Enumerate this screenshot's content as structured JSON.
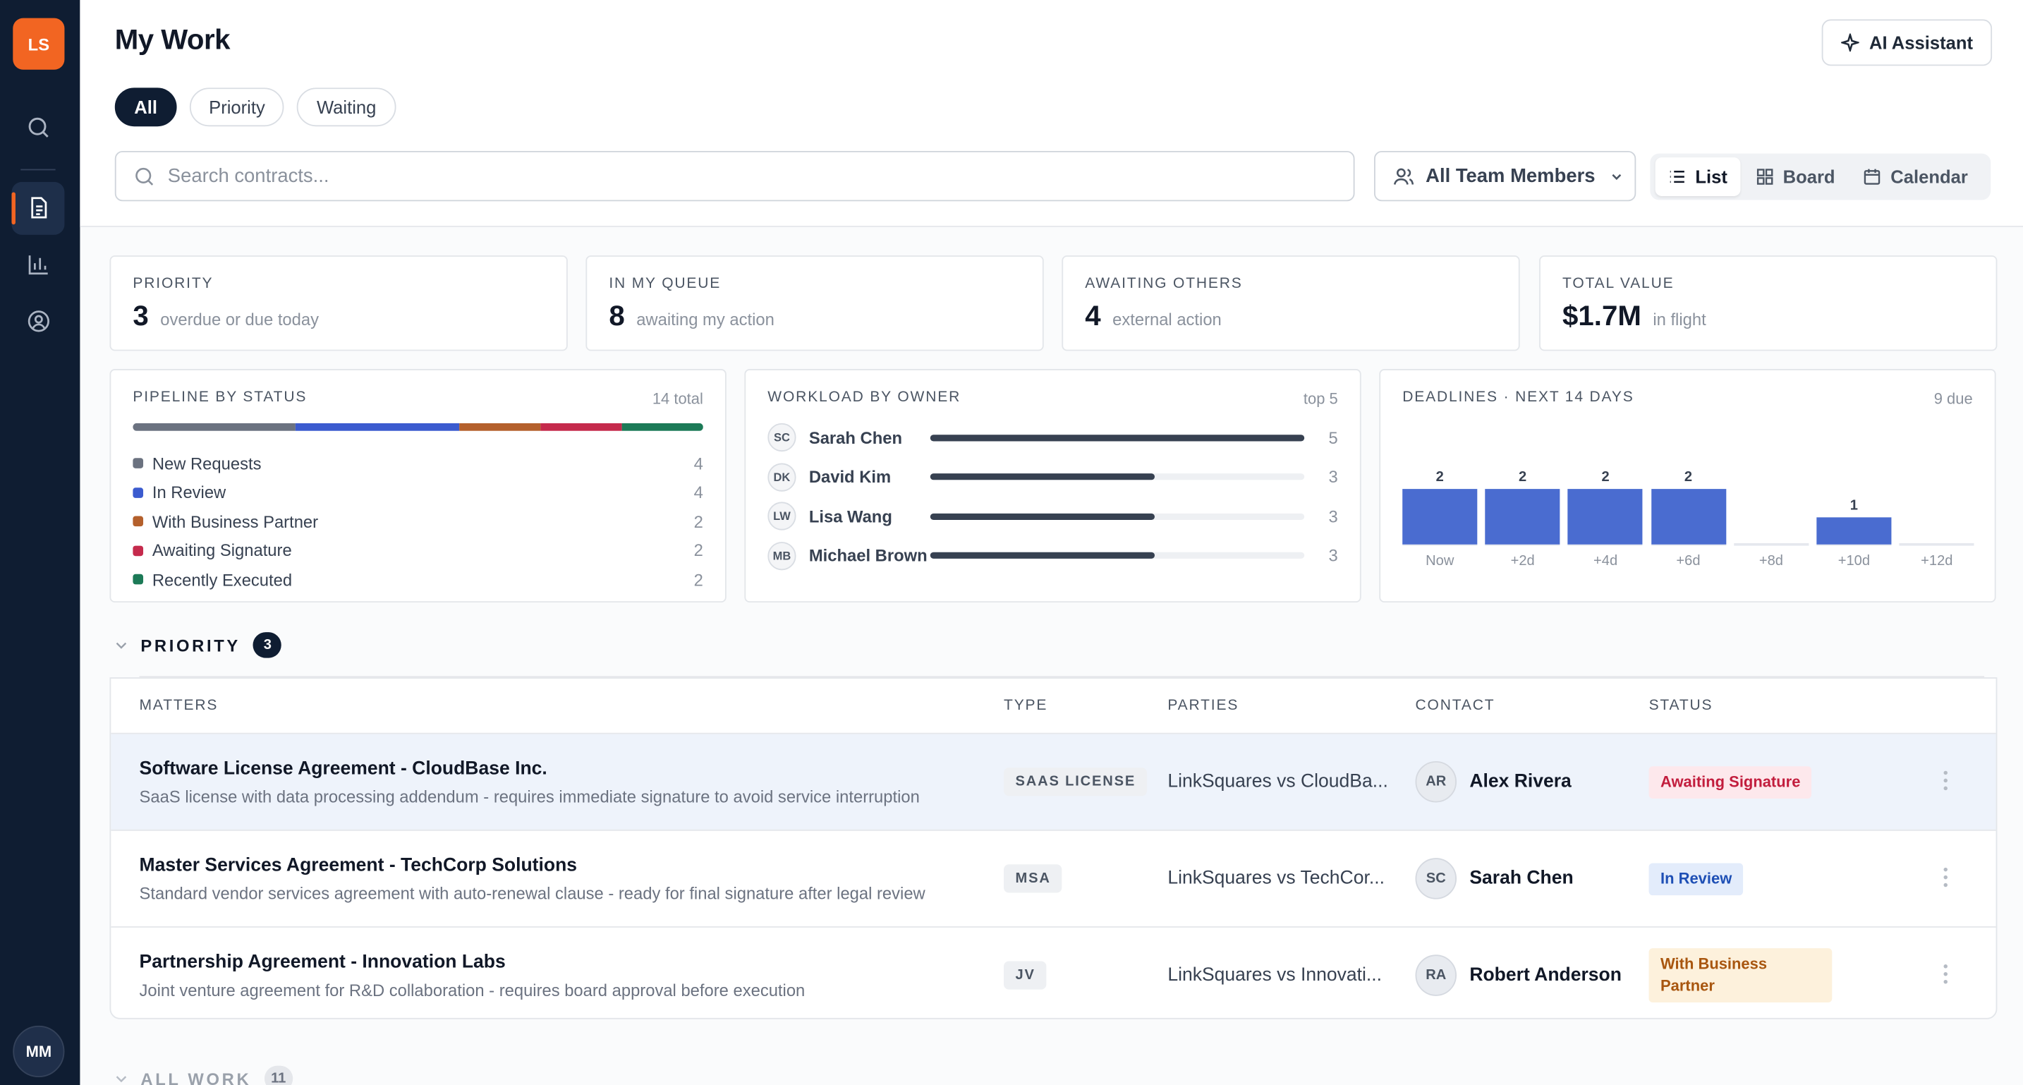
{
  "sidebar": {
    "logo": "LS",
    "user_initials": "MM"
  },
  "header": {
    "title": "My Work",
    "ai_button": "AI Assistant",
    "tabs": [
      "All",
      "Priority",
      "Waiting"
    ],
    "search_placeholder": "Search contracts...",
    "team_filter": "All Team Members",
    "views": [
      "List",
      "Board",
      "Calendar"
    ]
  },
  "stats": [
    {
      "label": "PRIORITY",
      "value": 3,
      "note": "overdue or due today"
    },
    {
      "label": "IN MY QUEUE",
      "value": 8,
      "note": "awaiting my action"
    },
    {
      "label": "AWAITING OTHERS",
      "value": 4,
      "note": "external action"
    },
    {
      "label": "TOTAL VALUE",
      "value": "$1.7M",
      "note": "in flight"
    }
  ],
  "pipeline": {
    "title": "PIPELINE BY STATUS",
    "total_label": "14 total",
    "items": [
      {
        "name": "New Requests",
        "count": 4,
        "color": "#6b7280"
      },
      {
        "name": "In Review",
        "count": 4,
        "color": "#3b5bcf"
      },
      {
        "name": "With Business Partner",
        "count": 2,
        "color": "#b4602c"
      },
      {
        "name": "Awaiting Signature",
        "count": 2,
        "color": "#c52a4c"
      },
      {
        "name": "Recently Executed",
        "count": 2,
        "color": "#1c7a57"
      }
    ]
  },
  "workload": {
    "title": "WORKLOAD BY OWNER",
    "note": "top 5",
    "owners": [
      {
        "initials": "SC",
        "name": "Sarah Chen",
        "count": 5
      },
      {
        "initials": "DK",
        "name": "David Kim",
        "count": 3
      },
      {
        "initials": "LW",
        "name": "Lisa Wang",
        "count": 3
      },
      {
        "initials": "MB",
        "name": "Michael Brown",
        "count": 3
      }
    ]
  },
  "deadlines": {
    "title": "DEADLINES · NEXT 14 DAYS",
    "note": "9 due",
    "color": "#4a6cd0",
    "bins": [
      {
        "label": "Now",
        "count": 2
      },
      {
        "label": "+2d",
        "count": 2
      },
      {
        "label": "+4d",
        "count": 2
      },
      {
        "label": "+6d",
        "count": 2
      },
      {
        "label": "+8d",
        "count": 0
      },
      {
        "label": "+10d",
        "count": 1
      },
      {
        "label": "+12d",
        "count": 0
      }
    ]
  },
  "priority": {
    "title": "PRIORITY",
    "count": 3,
    "columns": [
      "MATTERS",
      "TYPE",
      "PARTIES",
      "CONTACT",
      "STATUS"
    ],
    "rows": [
      {
        "title": "Software License Agreement - CloudBase Inc.",
        "description": "SaaS license with data processing addendum - requires immediate signature to avoid service interruption",
        "type": "SAAS LICENSE",
        "parties": "LinkSquares vs CloudBa...",
        "contact_initials": "AR",
        "contact": "Alex Rivera",
        "status": "Awaiting Signature"
      },
      {
        "title": "Master Services Agreement - TechCorp Solutions",
        "description": "Standard vendor services agreement with auto-renewal clause - ready for final signature after legal review",
        "type": "MSA",
        "parties": "LinkSquares vs TechCor...",
        "contact_initials": "SC",
        "contact": "Sarah Chen",
        "status": "In Review"
      },
      {
        "title": "Partnership Agreement - Innovation Labs",
        "description": "Joint venture agreement for R&D collaboration - requires board approval before execution",
        "type": "JV",
        "parties": "LinkSquares vs Innovati...",
        "contact_initials": "RA",
        "contact": "Robert Anderson",
        "status": "With Business Partner"
      }
    ]
  },
  "all_work": {
    "title": "ALL WORK",
    "count": 11
  }
}
